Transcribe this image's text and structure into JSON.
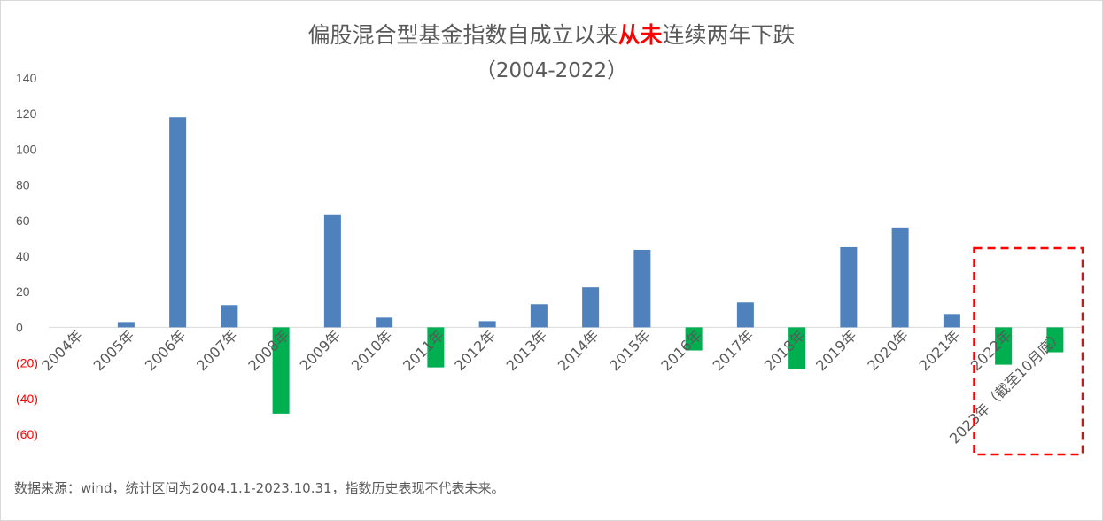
{
  "title": {
    "part1": "偏股混合型基金指数自成立以来",
    "highlight": "从未",
    "part2": "连续两年下跌",
    "subtitle": "（2004-2022）"
  },
  "source_note": "数据来源：wind，统计区间为2004.1.1-2023.10.31，指数历史表现不代表未来。",
  "colors": {
    "positive": "#4f81bd",
    "negative": "#00b050",
    "negative_tick": "#ff0000",
    "axis_text": "#595959",
    "highlight_box": "#ff0000"
  },
  "chart_data": {
    "type": "bar",
    "categories": [
      "2004年",
      "2005年",
      "2006年",
      "2007年",
      "2008年",
      "2009年",
      "2010年",
      "2011年",
      "2012年",
      "2013年",
      "2014年",
      "2015年",
      "2016年",
      "2017年",
      "2018年",
      "2019年",
      "2020年",
      "2021年",
      "2022年",
      "2023年（截至10月底）"
    ],
    "values": [
      0,
      3,
      118,
      12.5,
      -48.5,
      63,
      5.5,
      -22.5,
      3.5,
      13,
      22.5,
      43.5,
      -13,
      14,
      -23.5,
      45,
      56,
      7.5,
      -21,
      -14
    ],
    "ylim": [
      -60,
      140
    ],
    "yticks": [
      140,
      120,
      100,
      80,
      60,
      40,
      20,
      0,
      -20,
      -40,
      -60
    ],
    "ytick_labels": [
      "140",
      "120",
      "100",
      "80",
      "60",
      "40",
      "20",
      "0",
      "(20)",
      "(40)",
      "(60)"
    ],
    "highlighted_categories": [
      "2022年",
      "2023年（截至10月底）"
    ],
    "grid": false,
    "legend": "none"
  }
}
